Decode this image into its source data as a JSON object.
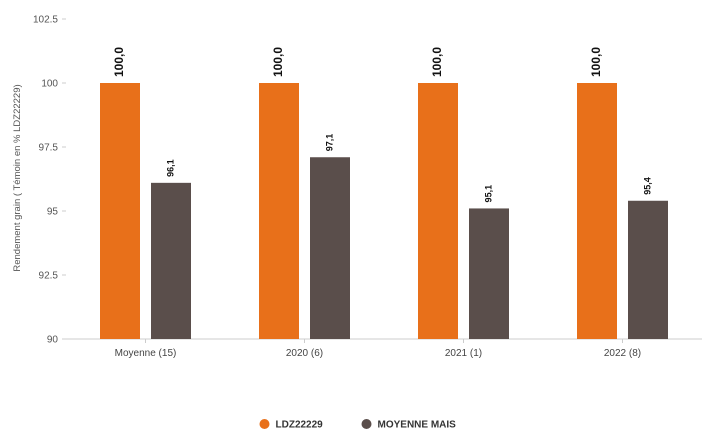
{
  "chart_data": {
    "type": "bar",
    "ylabel": "Rendement grain ( Témoin en % LDZ22229)",
    "xlabel": "",
    "categories": [
      "Moyenne (15)",
      "2020 (6)",
      "2021 (1)",
      "2022 (8)"
    ],
    "series": [
      {
        "name": "LDZ22229",
        "color": "#E8701A",
        "values": [
          100.0,
          100.0,
          100.0,
          100.0
        ],
        "labels": [
          "100,0",
          "100,0",
          "100,0",
          "100,0"
        ]
      },
      {
        "name": "MOYENNE MAIS",
        "color": "#5A4E4B",
        "values": [
          96.1,
          97.1,
          95.1,
          95.4
        ],
        "labels": [
          "96,1",
          "97,1",
          "95,1",
          "95,4"
        ]
      }
    ],
    "ylim": [
      90,
      102.5
    ],
    "yticks": [
      90,
      92.5,
      95,
      97.5,
      100,
      102.5
    ],
    "ytick_labels": [
      "90",
      "92.5",
      "95",
      "97.5",
      "100",
      "102.5"
    ],
    "grid": false,
    "legend": "bottom-center"
  }
}
